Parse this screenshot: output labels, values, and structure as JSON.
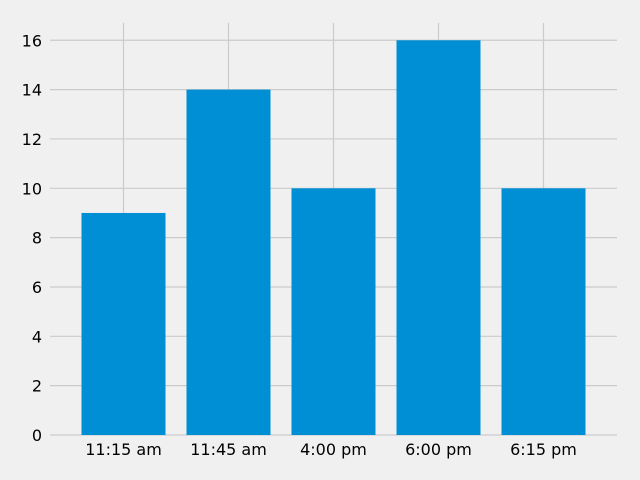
{
  "chart_data": {
    "type": "bar",
    "title": "",
    "xlabel": "",
    "ylabel": "",
    "categories": [
      "11:15 am",
      "11:45 am",
      "4:00 pm",
      "6:00 pm",
      "6:15 pm"
    ],
    "values": [
      9,
      14,
      10,
      16,
      10
    ],
    "ylim": [
      0,
      16.7
    ],
    "yticks": [
      "0",
      "2",
      "4",
      "6",
      "8",
      "10",
      "12",
      "14",
      "16"
    ],
    "grid": true,
    "colors": {
      "bar": "#008fd5",
      "background": "#f0f0f0",
      "grid": "#cbcbcb",
      "text": "#000000"
    }
  }
}
